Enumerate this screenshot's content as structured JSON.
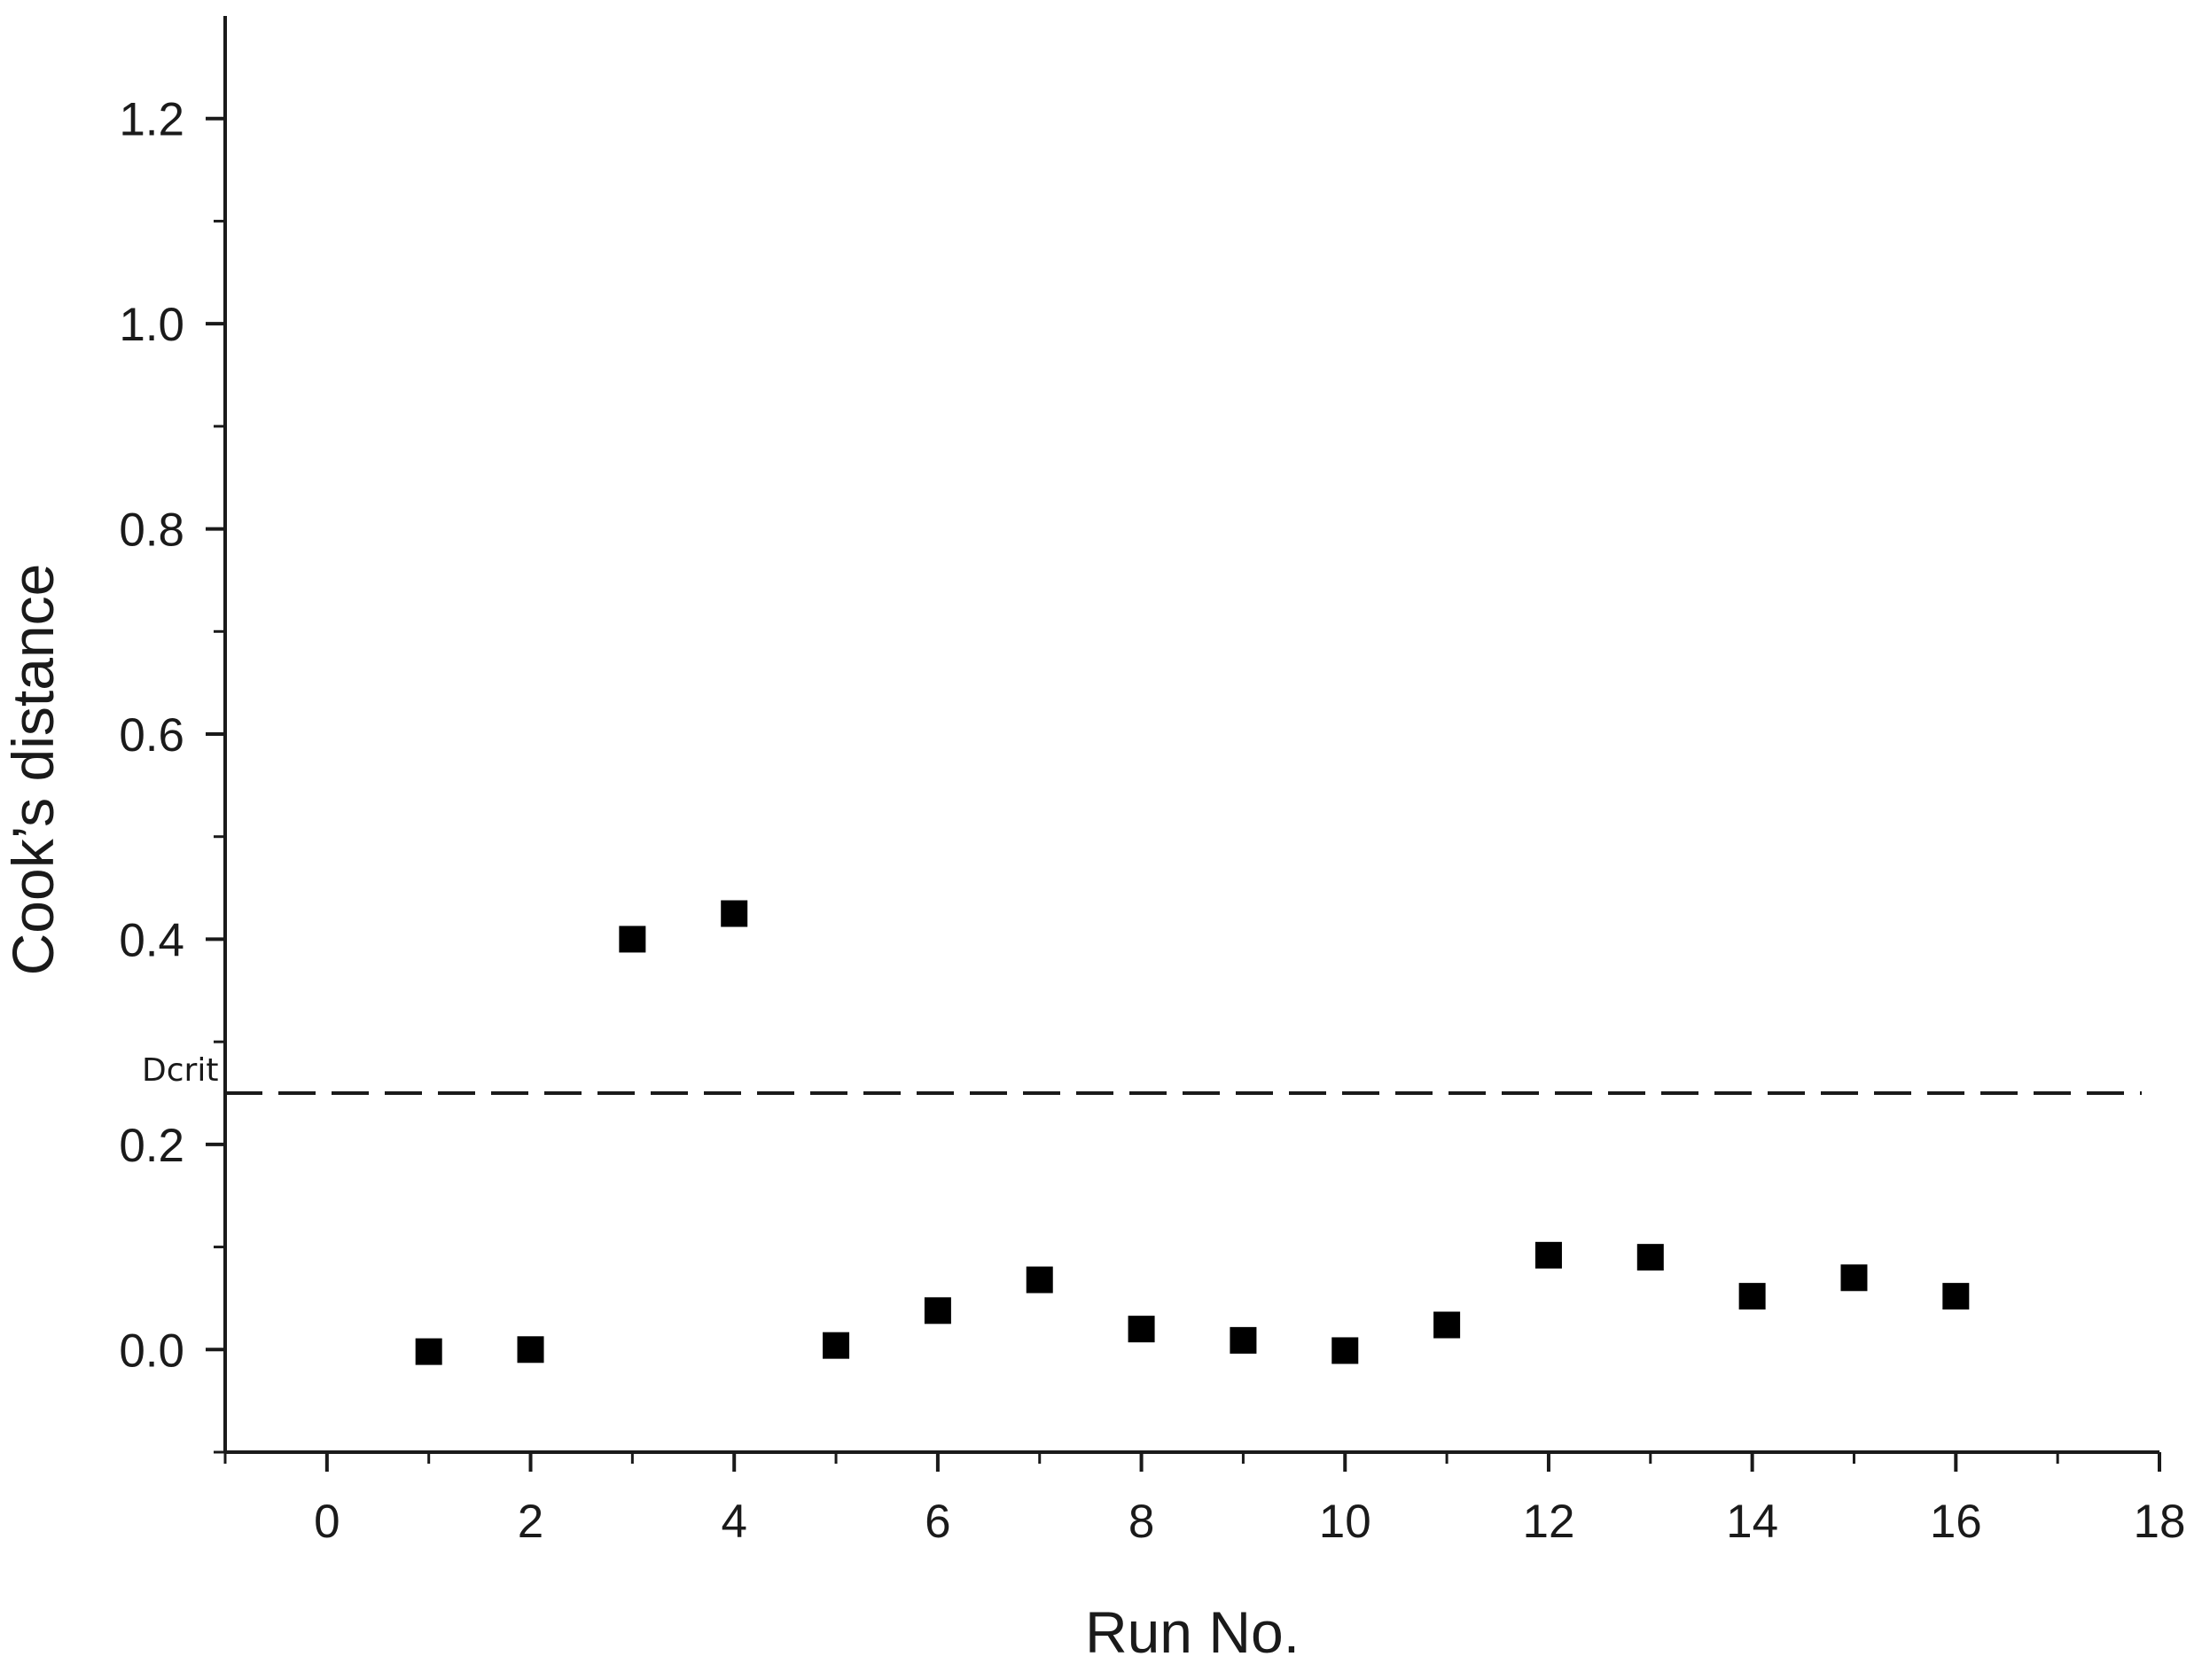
{
  "chart_data": {
    "type": "scatter",
    "xlabel": "Run No.",
    "ylabel": "Cook’s distance",
    "xlim": [
      -1,
      18
    ],
    "ylim": [
      -0.1,
      1.3
    ],
    "x_ticks": [
      0,
      2,
      4,
      6,
      8,
      10,
      12,
      14,
      16,
      18
    ],
    "x_tick_labels": [
      "0",
      "2",
      "4",
      "6",
      "8",
      "10",
      "12",
      "14",
      "16",
      "18"
    ],
    "y_ticks": [
      0.0,
      0.2,
      0.4,
      0.6,
      0.8,
      1.0,
      1.2
    ],
    "y_tick_labels": [
      "0.0",
      "0.2",
      "0.4",
      "0.6",
      "0.8",
      "1.0",
      "1.2"
    ],
    "grid": false,
    "marker": "square",
    "marker_color": "#000000",
    "series": [
      {
        "x": [
          1,
          2,
          3,
          4,
          5,
          6,
          7,
          8,
          9,
          10,
          11,
          12,
          13,
          14,
          15,
          16
        ],
        "y": [
          -0.002,
          0.0,
          0.4,
          0.425,
          0.004,
          0.038,
          0.068,
          0.02,
          0.009,
          -0.001,
          0.024,
          0.092,
          0.09,
          0.052,
          0.07,
          0.052
        ]
      }
    ],
    "reference_lines": [
      {
        "axis": "y",
        "value": 0.25,
        "style": "dashed",
        "label": "Dcrit"
      }
    ]
  }
}
